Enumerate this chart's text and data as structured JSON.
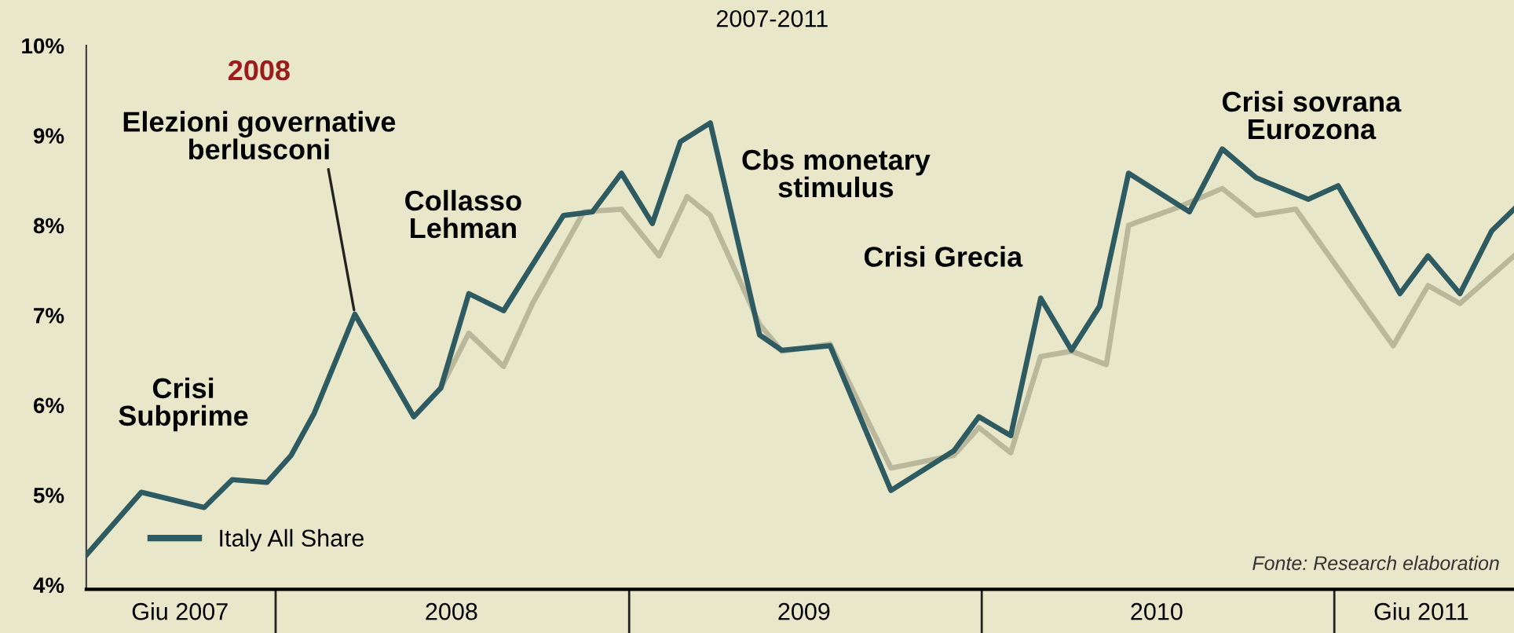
{
  "chart_data": {
    "type": "line",
    "title": "2007-2011",
    "x": [
      "2007-06-19",
      "2007-08-15",
      "2007-10-19",
      "2007-11-17",
      "2007-12-23",
      "2008-01-17",
      "2008-02-10",
      "2008-03-23",
      "2008-05-23",
      "2008-06-20",
      "2008-07-19",
      "2008-08-24",
      "2008-10-25",
      "2008-11-24",
      "2008-12-24",
      "2009-01-25",
      "2009-02-23",
      "2009-03-26",
      "2009-05-16",
      "2009-06-08",
      "2009-07-28",
      "2009-09-29",
      "2009-12-03",
      "2009-12-29",
      "2010-01-31",
      "2010-03-03",
      "2010-04-04",
      "2010-05-03",
      "2010-06-02",
      "2010-08-04",
      "2010-09-07",
      "2010-10-12",
      "2010-12-05",
      "2011-01-05",
      "2011-03-10",
      "2011-04-08",
      "2011-05-11",
      "2011-06-13",
      "2011-07-06"
    ],
    "series": [
      {
        "name": "Italy All Share",
        "color": "#2e5a62",
        "values": [
          4.33,
          5.03,
          4.86,
          5.17,
          5.14,
          5.44,
          5.91,
          7.01,
          5.87,
          6.19,
          7.24,
          7.05,
          8.11,
          8.15,
          8.58,
          8.02,
          8.93,
          9.14,
          6.78,
          6.61,
          6.66,
          5.05,
          5.49,
          5.87,
          5.66,
          7.19,
          6.61,
          7.1,
          8.58,
          8.15,
          8.85,
          8.53,
          8.29,
          8.44,
          7.24,
          7.66,
          7.24,
          7.94,
          8.18
        ]
      },
      {
        "color": "#b9b79c",
        "x": [
          "2008-06-20",
          "2008-07-19",
          "2008-08-24",
          "2008-09-23",
          "2008-11-15",
          "2008-12-24",
          "2009-02-01",
          "2009-03-02",
          "2009-03-26",
          "2009-05-16",
          "2009-06-08",
          "2009-07-28",
          "2009-09-29",
          "2009-12-03",
          "2009-12-29",
          "2010-01-31",
          "2010-03-03",
          "2010-04-04",
          "2010-05-10",
          "2010-06-02",
          "2010-07-23",
          "2010-09-07",
          "2010-10-12",
          "2010-11-22",
          "2011-03-03",
          "2011-04-08",
          "2011-05-11",
          "2011-07-06"
        ],
        "values": [
          6.19,
          6.8,
          6.43,
          7.13,
          8.15,
          8.18,
          7.66,
          8.32,
          8.11,
          6.9,
          6.6,
          6.68,
          5.3,
          5.44,
          5.75,
          5.47,
          6.54,
          6.6,
          6.45,
          8.0,
          8.2,
          8.41,
          8.11,
          8.18,
          6.66,
          7.33,
          7.13,
          7.66
        ]
      }
    ],
    "xlim": [
      "2007-06-19",
      "2011-07-06"
    ],
    "xticks": [
      {
        "value": "2007-09-24",
        "label": "Giu 2007"
      },
      {
        "value": "2008-07-01",
        "label": "2008"
      },
      {
        "value": "2009-07-01",
        "label": "2009"
      },
      {
        "value": "2010-07-01",
        "label": "2010"
      },
      {
        "value": "2011-04-01",
        "label": "Giu 2011"
      }
    ],
    "ylim": [
      3.95,
      10
    ],
    "yticks": [
      {
        "value": 4,
        "label": "4%"
      },
      {
        "value": 5,
        "label": "5%"
      },
      {
        "value": 6,
        "label": "6%"
      },
      {
        "value": 7,
        "label": "7%"
      },
      {
        "value": 8,
        "label": "8%"
      },
      {
        "value": 9,
        "label": "9%"
      },
      {
        "value": 10,
        "label": "10%"
      }
    ],
    "grid": false,
    "legend": "bottom left",
    "marker": "none",
    "line_style": "solid",
    "annotations": [
      "Crisi\nSubprime",
      "2008",
      {
        "text": "Elezioni governative\nberlusconi",
        "x": "2008-03-23",
        "y": 7.01
      },
      "Collasso\nLehman",
      "Cbs monetary\nstimulus",
      "Crisi Grecia",
      "Crisi sovrana\nEurozona",
      "Fonte: Research elaboration"
    ]
  }
}
